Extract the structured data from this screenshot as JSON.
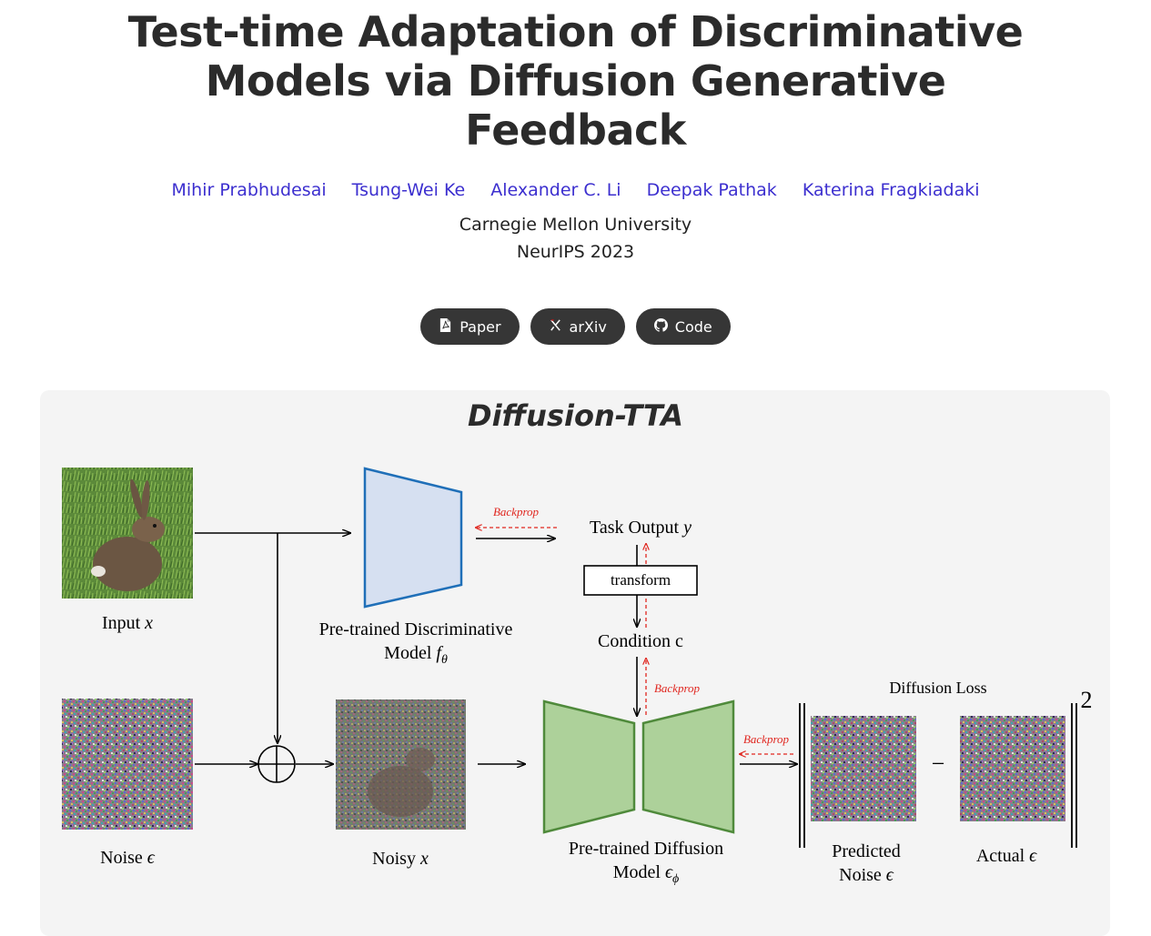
{
  "header": {
    "title_lines": [
      "Test-time Adaptation of Discriminative",
      "Models via Diffusion Generative",
      "Feedback"
    ],
    "authors": [
      "Mihir Prabhudesai",
      "Tsung-Wei Ke",
      "Alexander C. Li",
      "Deepak Pathak",
      "Katerina Fragkiadaki"
    ],
    "affiliation": "Carnegie Mellon University",
    "venue": "NeurIPS 2023"
  },
  "links": {
    "paper": {
      "label": "Paper",
      "icon": "pdf-file-icon"
    },
    "arxiv": {
      "label": "arXiv",
      "icon": "arxiv-icon"
    },
    "code": {
      "label": "Code",
      "icon": "github-icon"
    }
  },
  "figure": {
    "title": "Diffusion-TTA",
    "input_label": "Input ",
    "input_var": "x",
    "noise_label": "Noise ",
    "noise_var": "ϵ",
    "noisy_label": "Noisy ",
    "noisy_var": "x",
    "disc_label_1": "Pre-trained Discriminative",
    "disc_label_2": "Model ",
    "disc_var": "f",
    "disc_sub": "θ",
    "task_output": "Task Output ",
    "task_var": "y",
    "transform": "transform",
    "condition": "Condition c",
    "diff_label_1": "Pre-trained Diffusion",
    "diff_label_2": "Model ",
    "diff_var": "ϵ",
    "diff_sub": "ϕ",
    "diffusion_loss": "Diffusion Loss",
    "predicted_1": "Predicted",
    "predicted_2": "Noise ",
    "predicted_var": "ϵ",
    "actual": "Actual ",
    "actual_var": "ϵ",
    "backprop": "Backprop",
    "exponent": "2",
    "minus": "−",
    "colors": {
      "backprop": "#e0261f",
      "disc_fill": "#d6e0f1",
      "disc_stroke": "#1f6fb8",
      "diff_fill": "#add19a",
      "diff_stroke": "#4f8a3b"
    }
  }
}
